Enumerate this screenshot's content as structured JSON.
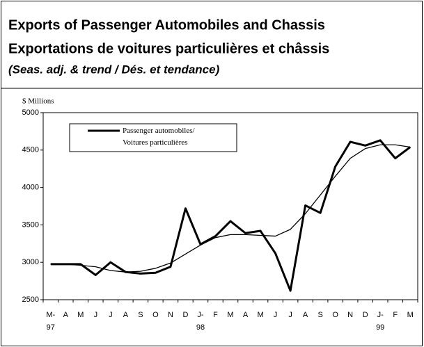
{
  "chart_data": {
    "type": "line",
    "title": "Exports of Passenger Automobiles and Chassis",
    "subtitle": "Exportations de voitures particulières et châssis",
    "note": "(Seas. adj. & trend / Dés. et tendance)",
    "y_label": "$ Millions",
    "categories": [
      "M-\n97",
      "A",
      "M",
      "J",
      "J",
      "A",
      "S",
      "O",
      "N",
      "D",
      "J-\n98",
      "F",
      "M",
      "A",
      "M",
      "J",
      "J",
      "A",
      "S",
      "O",
      "N",
      "D",
      "J-\n99",
      "F",
      "M"
    ],
    "series": [
      {
        "name": "Passenger automobiles/\nVoitures particulières",
        "color": "#000000",
        "values": [
          2975,
          2975,
          2975,
          2830,
          3000,
          2870,
          2850,
          2860,
          2940,
          3720,
          3240,
          3350,
          3550,
          3390,
          3420,
          3120,
          2620,
          3760,
          3660,
          4280,
          4610,
          4560,
          4630,
          4390,
          4540
        ]
      },
      {
        "color": "#000000",
        "values": [
          2975,
          2975,
          2960,
          2940,
          2890,
          2870,
          2880,
          2920,
          2990,
          3110,
          3230,
          3330,
          3370,
          3370,
          3360,
          3350,
          3440,
          3650,
          3900,
          4150,
          4390,
          4520,
          4570,
          4570,
          4540
        ]
      }
    ],
    "ylim": [
      2500,
      5000
    ],
    "yticks": [
      2500,
      3000,
      3500,
      4000,
      4500,
      5000
    ],
    "legend": "top-left"
  }
}
